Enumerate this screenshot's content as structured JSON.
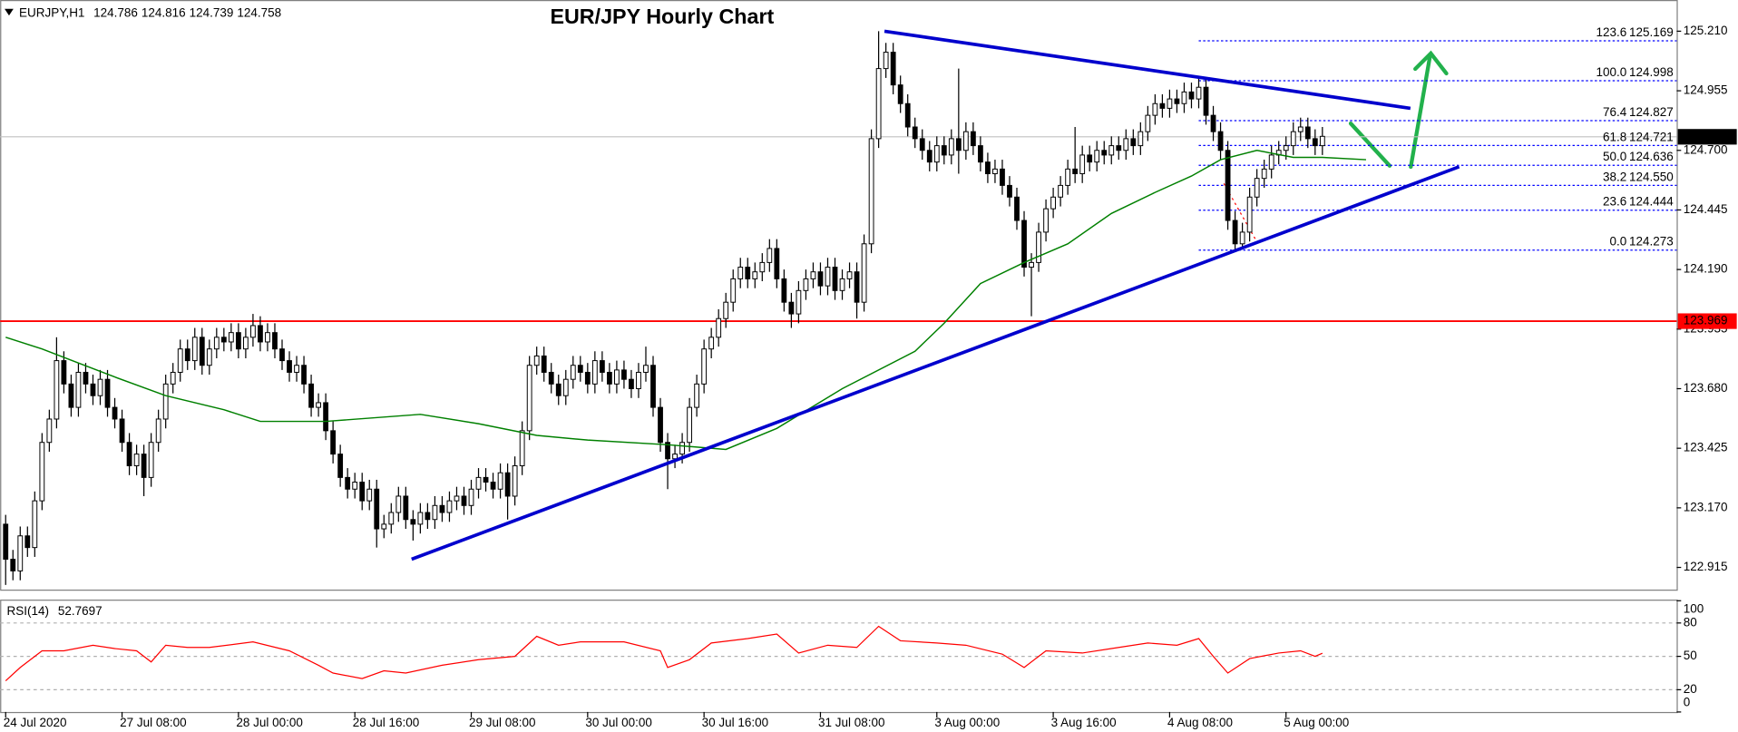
{
  "chart_data": [
    {
      "type": "candlestick",
      "title": "EUR/JPY Hourly Chart",
      "symbol": "EURJPY,H1",
      "quote": [
        124.786,
        124.816,
        124.739,
        124.758
      ],
      "open": [
        123.1,
        122.95,
        122.9,
        123.05,
        123.0,
        123.2,
        123.45,
        123.55,
        123.8,
        123.7,
        123.6,
        123.75,
        123.7,
        123.65,
        123.72,
        123.6,
        123.55,
        123.45,
        123.35,
        123.4,
        123.3,
        123.45,
        123.55,
        123.7,
        123.75,
        123.85,
        123.8,
        123.9,
        123.78,
        123.85,
        123.9,
        123.88,
        123.92,
        123.85,
        123.9,
        123.95,
        123.88,
        123.92,
        123.85,
        123.8,
        123.75,
        123.78,
        123.7,
        123.6,
        123.62,
        123.5,
        123.4,
        123.3,
        123.25,
        123.28,
        123.2,
        123.25,
        123.08,
        123.1,
        123.15,
        123.22,
        123.12,
        123.1,
        123.15,
        123.12,
        123.18,
        123.15,
        123.2,
        123.22,
        123.18,
        123.25,
        123.3,
        123.28,
        123.25,
        123.32,
        123.22,
        123.35,
        123.5,
        123.78,
        123.82,
        123.75,
        123.7,
        123.65,
        123.72,
        123.78,
        123.75,
        123.7,
        123.8,
        123.75,
        123.7,
        123.76,
        123.72,
        123.68,
        123.75,
        123.78,
        123.6,
        123.45,
        123.38,
        123.4,
        123.45,
        123.6,
        123.7,
        123.85,
        123.9,
        123.98,
        124.05,
        124.15,
        124.2,
        124.15,
        124.18,
        124.22,
        124.28,
        124.15,
        124.05,
        124.0,
        124.1,
        124.15,
        124.18,
        124.12,
        124.2,
        124.1,
        124.15,
        124.18,
        124.05,
        124.3,
        124.75,
        125.05,
        125.12,
        124.98,
        124.9,
        124.8,
        124.75,
        124.7,
        124.65,
        124.72,
        124.68,
        124.75,
        124.7,
        124.78,
        124.72,
        124.65,
        124.6,
        124.62,
        124.55,
        124.5,
        124.4,
        124.2,
        124.22,
        124.35,
        124.45,
        124.5,
        124.55,
        124.62,
        124.6,
        124.68,
        124.65,
        124.7,
        124.68,
        124.72,
        124.7,
        124.75,
        124.72,
        124.78,
        124.85,
        124.9,
        124.88,
        124.92,
        124.9,
        124.95,
        124.92,
        124.97,
        124.85,
        124.78,
        124.7,
        124.4,
        124.3,
        124.35,
        124.5,
        124.58,
        124.62,
        124.68,
        124.7,
        124.72,
        124.78,
        124.8,
        124.75,
        124.72
      ],
      "high": [
        123.14,
        122.99,
        123.09,
        123.09,
        123.24,
        123.49,
        123.59,
        123.9,
        123.84,
        123.74,
        123.79,
        123.79,
        123.74,
        123.76,
        123.76,
        123.64,
        123.59,
        123.49,
        123.44,
        123.44,
        123.49,
        123.59,
        123.74,
        123.79,
        123.89,
        123.89,
        123.94,
        123.94,
        123.89,
        123.94,
        123.94,
        123.96,
        123.96,
        123.94,
        124.0,
        123.99,
        123.96,
        123.96,
        123.89,
        123.84,
        123.82,
        123.82,
        123.74,
        123.66,
        123.66,
        123.54,
        123.44,
        123.34,
        123.32,
        123.32,
        123.29,
        123.29,
        123.14,
        123.19,
        123.26,
        123.26,
        123.16,
        123.19,
        123.19,
        123.22,
        123.22,
        123.24,
        123.26,
        123.26,
        123.29,
        123.34,
        123.34,
        123.32,
        123.36,
        123.36,
        123.39,
        123.54,
        123.82,
        123.86,
        123.86,
        123.79,
        123.74,
        123.76,
        123.82,
        123.82,
        123.79,
        123.84,
        123.84,
        123.79,
        123.8,
        123.8,
        123.76,
        123.79,
        123.86,
        123.82,
        123.64,
        123.49,
        123.44,
        123.49,
        123.64,
        123.74,
        123.89,
        123.94,
        124.02,
        124.09,
        124.19,
        124.24,
        124.24,
        124.22,
        124.26,
        124.32,
        124.32,
        124.19,
        124.09,
        124.14,
        124.19,
        124.22,
        124.22,
        124.24,
        124.24,
        124.19,
        124.22,
        124.22,
        124.34,
        124.79,
        125.21,
        125.16,
        125.16,
        125.02,
        124.94,
        124.84,
        124.79,
        124.74,
        124.76,
        124.76,
        124.79,
        125.05,
        124.82,
        124.82,
        124.76,
        124.69,
        124.66,
        124.66,
        124.59,
        124.54,
        124.44,
        124.26,
        124.39,
        124.49,
        124.54,
        124.59,
        124.66,
        124.8,
        124.72,
        124.72,
        124.74,
        124.74,
        124.76,
        124.76,
        124.79,
        124.79,
        124.82,
        124.89,
        124.94,
        124.94,
        124.96,
        124.96,
        124.99,
        124.99,
        125.01,
        125.01,
        124.89,
        124.82,
        124.74,
        124.44,
        124.39,
        124.54,
        124.62,
        124.66,
        124.72,
        124.74,
        124.76,
        124.82,
        124.84,
        124.84,
        124.79,
        124.8
      ],
      "low": [
        122.84,
        122.86,
        122.86,
        122.96,
        122.96,
        123.16,
        123.41,
        123.51,
        123.66,
        123.56,
        123.56,
        123.66,
        123.61,
        123.61,
        123.56,
        123.51,
        123.41,
        123.31,
        123.31,
        123.22,
        123.26,
        123.41,
        123.51,
        123.66,
        123.71,
        123.76,
        123.76,
        123.74,
        123.74,
        123.81,
        123.84,
        123.84,
        123.81,
        123.81,
        123.86,
        123.84,
        123.84,
        123.81,
        123.76,
        123.71,
        123.71,
        123.66,
        123.56,
        123.56,
        123.46,
        123.36,
        123.26,
        123.21,
        123.21,
        123.16,
        123.16,
        123.0,
        123.04,
        123.06,
        123.11,
        123.08,
        123.03,
        123.06,
        123.08,
        123.08,
        123.11,
        123.11,
        123.16,
        123.14,
        123.14,
        123.21,
        123.24,
        123.21,
        123.21,
        123.12,
        123.18,
        123.31,
        123.46,
        123.74,
        123.71,
        123.66,
        123.61,
        123.61,
        123.68,
        123.71,
        123.66,
        123.66,
        123.71,
        123.66,
        123.66,
        123.68,
        123.64,
        123.64,
        123.71,
        123.56,
        123.41,
        123.25,
        123.34,
        123.36,
        123.41,
        123.56,
        123.66,
        123.81,
        123.86,
        123.94,
        124.01,
        124.11,
        124.11,
        124.11,
        124.14,
        124.18,
        124.11,
        124.01,
        123.94,
        123.96,
        124.06,
        124.11,
        124.08,
        124.08,
        124.06,
        124.06,
        124.11,
        123.98,
        124.01,
        124.26,
        124.71,
        125.01,
        124.94,
        124.86,
        124.76,
        124.71,
        124.66,
        124.61,
        124.61,
        124.64,
        124.64,
        124.6,
        124.66,
        124.68,
        124.61,
        124.56,
        124.56,
        124.51,
        124.46,
        124.36,
        124.16,
        123.99,
        124.18,
        124.31,
        124.41,
        124.46,
        124.51,
        124.56,
        124.56,
        124.61,
        124.61,
        124.64,
        124.64,
        124.66,
        124.66,
        124.68,
        124.68,
        124.74,
        124.81,
        124.84,
        124.84,
        124.86,
        124.86,
        124.88,
        124.88,
        124.81,
        124.74,
        124.66,
        124.36,
        124.27,
        124.28,
        124.31,
        124.46,
        124.54,
        124.58,
        124.64,
        124.66,
        124.68,
        124.74,
        124.71,
        124.68,
        124.68
      ],
      "close": [
        122.95,
        122.9,
        123.05,
        123.0,
        123.2,
        123.45,
        123.55,
        123.8,
        123.7,
        123.6,
        123.75,
        123.7,
        123.65,
        123.72,
        123.6,
        123.55,
        123.45,
        123.35,
        123.4,
        123.3,
        123.45,
        123.55,
        123.7,
        123.75,
        123.85,
        123.8,
        123.9,
        123.78,
        123.85,
        123.9,
        123.88,
        123.92,
        123.85,
        123.9,
        123.95,
        123.88,
        123.92,
        123.85,
        123.8,
        123.75,
        123.78,
        123.7,
        123.6,
        123.62,
        123.5,
        123.4,
        123.3,
        123.25,
        123.28,
        123.2,
        123.25,
        123.08,
        123.1,
        123.15,
        123.22,
        123.12,
        123.1,
        123.15,
        123.12,
        123.18,
        123.15,
        123.2,
        123.22,
        123.18,
        123.25,
        123.3,
        123.28,
        123.25,
        123.32,
        123.22,
        123.35,
        123.5,
        123.78,
        123.82,
        123.75,
        123.7,
        123.65,
        123.72,
        123.78,
        123.75,
        123.7,
        123.8,
        123.75,
        123.7,
        123.76,
        123.72,
        123.68,
        123.75,
        123.78,
        123.6,
        123.45,
        123.38,
        123.4,
        123.45,
        123.6,
        123.7,
        123.85,
        123.9,
        123.98,
        124.05,
        124.15,
        124.2,
        124.15,
        124.18,
        124.22,
        124.28,
        124.15,
        124.05,
        124.0,
        124.1,
        124.15,
        124.18,
        124.12,
        124.2,
        124.1,
        124.15,
        124.18,
        124.05,
        124.3,
        124.75,
        125.05,
        125.12,
        124.98,
        124.9,
        124.8,
        124.75,
        124.7,
        124.65,
        124.72,
        124.68,
        124.75,
        124.7,
        124.78,
        124.72,
        124.65,
        124.6,
        124.62,
        124.55,
        124.5,
        124.4,
        124.2,
        124.22,
        124.35,
        124.45,
        124.5,
        124.55,
        124.62,
        124.6,
        124.68,
        124.65,
        124.7,
        124.68,
        124.72,
        124.7,
        124.75,
        124.72,
        124.78,
        124.85,
        124.9,
        124.88,
        124.92,
        124.9,
        124.95,
        124.92,
        124.97,
        124.85,
        124.78,
        124.7,
        124.4,
        124.3,
        124.35,
        124.5,
        124.58,
        124.62,
        124.68,
        124.7,
        124.72,
        124.78,
        124.8,
        124.75,
        124.72,
        124.76
      ],
      "up_color": "#ffffff",
      "down_color": "#000000",
      "xlim": [
        -0.76,
        229.7
      ],
      "xticks": [
        {
          "value": 0,
          "label": "24 Jul 2020"
        },
        {
          "value": 16,
          "label": "27 Jul 08:00"
        },
        {
          "value": 32,
          "label": "28 Jul 00:00"
        },
        {
          "value": 48,
          "label": "28 Jul 16:00"
        },
        {
          "value": 64,
          "label": "29 Jul 08:00"
        },
        {
          "value": 80,
          "label": "30 Jul 00:00"
        },
        {
          "value": 96,
          "label": "30 Jul 16:00"
        },
        {
          "value": 112,
          "label": "31 Jul 08:00"
        },
        {
          "value": 128,
          "label": "3 Aug 00:00"
        },
        {
          "value": 144,
          "label": "3 Aug 16:00"
        },
        {
          "value": 160,
          "label": "4 Aug 08:00"
        },
        {
          "value": 176,
          "label": "5 Aug 00:00"
        }
      ],
      "ylim": [
        122.82,
        125.334
      ],
      "yticks": [
        122.915,
        {
          "value": 123.17,
          "label": "123.170"
        },
        123.425,
        {
          "value": 123.68,
          "label": "123.680"
        },
        {
          "value": 123.935,
          "label": "123.935"
        },
        {
          "value": 124.19,
          "label": "124.190"
        },
        124.445,
        {
          "value": 124.7,
          "label": "124.700"
        },
        124.955,
        {
          "value": 125.21,
          "label": "125.210"
        }
      ],
      "ma": {
        "color": "#008000",
        "x": [
          0,
          5,
          10,
          15,
          22,
          30,
          35,
          44,
          57,
          65,
          73,
          80,
          91,
          99,
          106,
          115,
          125,
          129,
          134,
          140,
          146,
          152,
          158,
          163,
          167,
          172,
          177,
          181,
          187
        ],
        "values": [
          123.9,
          123.85,
          123.79,
          123.73,
          123.65,
          123.59,
          123.54,
          123.54,
          123.57,
          123.53,
          123.48,
          123.46,
          123.44,
          123.42,
          123.51,
          123.68,
          123.84,
          123.96,
          124.13,
          124.22,
          124.3,
          124.43,
          124.52,
          124.59,
          124.66,
          124.7,
          124.67,
          124.67,
          124.66
        ]
      },
      "trendlines": [
        {
          "color": "#0000cd",
          "x": [
            120.8,
            193.1
          ],
          "values": [
            125.21,
            124.88
          ]
        },
        {
          "color": "#0000cd",
          "x": [
            55.8,
            199.8
          ],
          "values": [
            122.95,
            124.63
          ]
        }
      ],
      "support": {
        "value": 123.969,
        "color": "#ff0000"
      },
      "fibonacci": {
        "color": "#0000ff",
        "x_start": 164,
        "levels": [
          {
            "ratio": 123.6,
            "price": 125.169
          },
          {
            "ratio": {
              "value": 100,
              "label": "100.0"
            },
            "price": 124.998
          },
          {
            "ratio": 76.4,
            "price": 124.827
          },
          {
            "ratio": 61.8,
            "price": 124.721
          },
          {
            "ratio": {
              "value": 50,
              "label": "50.0"
            },
            "price": 124.636
          },
          {
            "ratio": 38.2,
            "price": {
              "value": 124.55,
              "label": "124.550"
            }
          },
          {
            "ratio": 23.6,
            "price": 124.444
          },
          {
            "ratio": {
              "value": 0,
              "label": "0.0"
            },
            "price": 124.273
          }
        ]
      }
    },
    {
      "type": "line",
      "name": "RSI(14)",
      "last": 52.7697,
      "color": "#ff0000",
      "x": [
        0,
        2,
        5,
        8,
        12,
        15,
        18,
        20,
        22,
        25,
        28,
        34,
        39,
        43,
        45,
        49,
        52,
        55,
        60,
        65,
        70,
        73,
        76,
        79,
        85,
        90,
        91,
        94,
        97,
        102,
        106,
        109,
        113,
        117,
        120,
        123,
        128,
        132,
        137,
        140,
        143,
        148,
        152,
        157,
        161,
        164,
        166,
        168,
        171,
        175,
        178,
        180,
        181
      ],
      "values": [
        28,
        40,
        55,
        55,
        60,
        57,
        55,
        45,
        60,
        58,
        58,
        63,
        55,
        42,
        35,
        30,
        37,
        35,
        42,
        47,
        50,
        68,
        60,
        63,
        63,
        55,
        40,
        47,
        62,
        66,
        70,
        53,
        60,
        58,
        77,
        64,
        62,
        60,
        52,
        40,
        55,
        53,
        57,
        62,
        60,
        66,
        50,
        35,
        48,
        53,
        55,
        50,
        52.7697
      ],
      "xlim": [
        -0.76,
        229.7
      ],
      "ylim": [
        0,
        100
      ],
      "yticks": [
        0,
        20,
        50,
        80,
        100
      ],
      "levels": [
        20,
        50,
        80
      ]
    }
  ]
}
